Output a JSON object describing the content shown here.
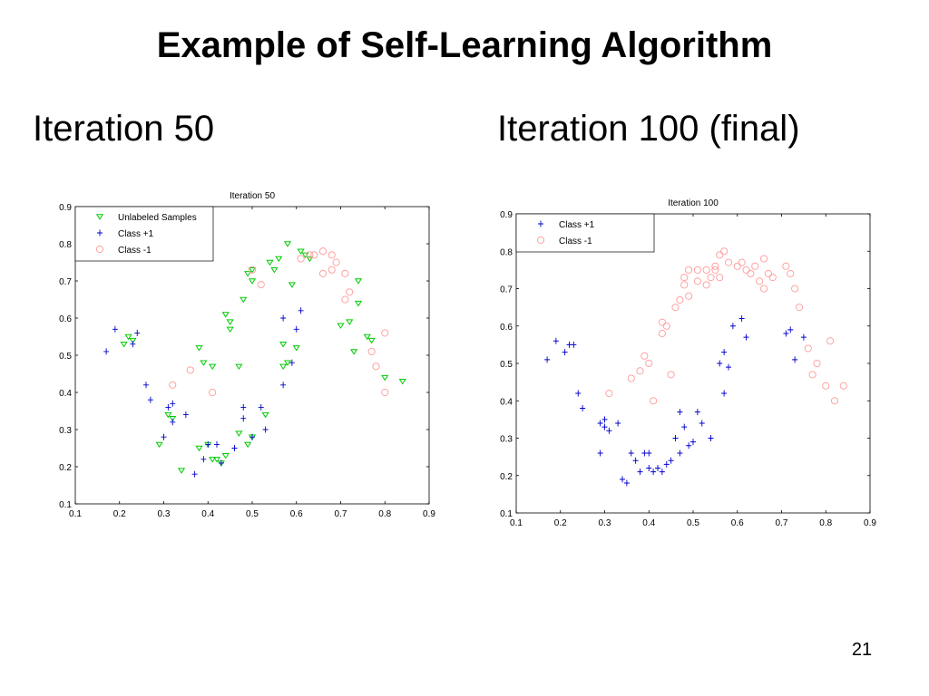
{
  "slide": {
    "title": "Example of Self-Learning Algorithm",
    "left_subtitle": "Iteration 50",
    "right_subtitle": "Iteration 100 (final)",
    "page_number": "21"
  },
  "colors": {
    "unlabeled": "#00cc00",
    "class_pos": "#0000cc",
    "class_neg": "#ff9999"
  },
  "chart_data": [
    {
      "type": "scatter",
      "title": "Iteration 50",
      "xlabel": "",
      "ylabel": "",
      "xlim": [
        0.1,
        0.9
      ],
      "ylim": [
        0.1,
        0.9
      ],
      "xticks": [
        "0.1",
        "0.2",
        "0.3",
        "0.4",
        "0.5",
        "0.6",
        "0.7",
        "0.8",
        "0.9"
      ],
      "yticks": [
        "0.1",
        "0.2",
        "0.3",
        "0.4",
        "0.5",
        "0.6",
        "0.7",
        "0.8",
        "0.9"
      ],
      "grid": false,
      "legend_position": "top-left",
      "series": [
        {
          "name": "Unlabeled Samples",
          "marker": "triangle-down",
          "color": "#00cc00",
          "points": [
            [
              0.21,
              0.53
            ],
            [
              0.22,
              0.55
            ],
            [
              0.23,
              0.54
            ],
            [
              0.29,
              0.26
            ],
            [
              0.31,
              0.34
            ],
            [
              0.32,
              0.33
            ],
            [
              0.34,
              0.19
            ],
            [
              0.38,
              0.25
            ],
            [
              0.38,
              0.52
            ],
            [
              0.39,
              0.48
            ],
            [
              0.41,
              0.47
            ],
            [
              0.4,
              0.26
            ],
            [
              0.41,
              0.22
            ],
            [
              0.42,
              0.22
            ],
            [
              0.43,
              0.21
            ],
            [
              0.44,
              0.23
            ],
            [
              0.44,
              0.61
            ],
            [
              0.45,
              0.59
            ],
            [
              0.45,
              0.57
            ],
            [
              0.47,
              0.47
            ],
            [
              0.47,
              0.29
            ],
            [
              0.48,
              0.65
            ],
            [
              0.49,
              0.72
            ],
            [
              0.49,
              0.26
            ],
            [
              0.5,
              0.7
            ],
            [
              0.5,
              0.28
            ],
            [
              0.5,
              0.73
            ],
            [
              0.53,
              0.34
            ],
            [
              0.54,
              0.75
            ],
            [
              0.55,
              0.73
            ],
            [
              0.56,
              0.76
            ],
            [
              0.57,
              0.47
            ],
            [
              0.57,
              0.53
            ],
            [
              0.58,
              0.48
            ],
            [
              0.58,
              0.8
            ],
            [
              0.59,
              0.69
            ],
            [
              0.6,
              0.52
            ],
            [
              0.61,
              0.78
            ],
            [
              0.62,
              0.77
            ],
            [
              0.63,
              0.76
            ],
            [
              0.7,
              0.58
            ],
            [
              0.72,
              0.59
            ],
            [
              0.73,
              0.51
            ],
            [
              0.74,
              0.7
            ],
            [
              0.76,
              0.55
            ],
            [
              0.77,
              0.54
            ],
            [
              0.8,
              0.44
            ],
            [
              0.84,
              0.43
            ],
            [
              0.74,
              0.64
            ]
          ]
        },
        {
          "name": "Class +1",
          "marker": "plus",
          "color": "#0000cc",
          "points": [
            [
              0.17,
              0.51
            ],
            [
              0.19,
              0.57
            ],
            [
              0.23,
              0.53
            ],
            [
              0.24,
              0.56
            ],
            [
              0.26,
              0.42
            ],
            [
              0.27,
              0.38
            ],
            [
              0.3,
              0.28
            ],
            [
              0.31,
              0.36
            ],
            [
              0.32,
              0.32
            ],
            [
              0.32,
              0.37
            ],
            [
              0.35,
              0.34
            ],
            [
              0.37,
              0.18
            ],
            [
              0.39,
              0.22
            ],
            [
              0.4,
              0.26
            ],
            [
              0.42,
              0.26
            ],
            [
              0.43,
              0.21
            ],
            [
              0.46,
              0.25
            ],
            [
              0.48,
              0.36
            ],
            [
              0.48,
              0.33
            ],
            [
              0.5,
              0.28
            ],
            [
              0.52,
              0.36
            ],
            [
              0.53,
              0.3
            ],
            [
              0.57,
              0.42
            ],
            [
              0.57,
              0.6
            ],
            [
              0.59,
              0.48
            ],
            [
              0.6,
              0.57
            ],
            [
              0.61,
              0.62
            ]
          ]
        },
        {
          "name": "Class -1",
          "marker": "circle",
          "color": "#ff9999",
          "points": [
            [
              0.32,
              0.42
            ],
            [
              0.36,
              0.46
            ],
            [
              0.41,
              0.4
            ],
            [
              0.5,
              0.73
            ],
            [
              0.52,
              0.69
            ],
            [
              0.61,
              0.76
            ],
            [
              0.63,
              0.77
            ],
            [
              0.64,
              0.77
            ],
            [
              0.66,
              0.78
            ],
            [
              0.66,
              0.72
            ],
            [
              0.68,
              0.77
            ],
            [
              0.68,
              0.73
            ],
            [
              0.69,
              0.75
            ],
            [
              0.71,
              0.72
            ],
            [
              0.71,
              0.65
            ],
            [
              0.72,
              0.67
            ],
            [
              0.77,
              0.51
            ],
            [
              0.78,
              0.47
            ],
            [
              0.8,
              0.4
            ],
            [
              0.8,
              0.56
            ]
          ]
        }
      ]
    },
    {
      "type": "scatter",
      "title": "Iteration 100",
      "xlabel": "",
      "ylabel": "",
      "xlim": [
        0.1,
        0.9
      ],
      "ylim": [
        0.1,
        0.9
      ],
      "xticks": [
        "0.1",
        "0.2",
        "0.3",
        "0.4",
        "0.5",
        "0.6",
        "0.7",
        "0.8",
        "0.9"
      ],
      "yticks": [
        "0.1",
        "0.2",
        "0.3",
        "0.4",
        "0.5",
        "0.6",
        "0.7",
        "0.8",
        "0.9"
      ],
      "grid": false,
      "legend_position": "top-left",
      "series": [
        {
          "name": "Class +1",
          "marker": "plus",
          "color": "#0000cc",
          "points": [
            [
              0.17,
              0.51
            ],
            [
              0.19,
              0.56
            ],
            [
              0.21,
              0.53
            ],
            [
              0.22,
              0.55
            ],
            [
              0.23,
              0.55
            ],
            [
              0.24,
              0.42
            ],
            [
              0.25,
              0.38
            ],
            [
              0.29,
              0.26
            ],
            [
              0.29,
              0.34
            ],
            [
              0.3,
              0.33
            ],
            [
              0.31,
              0.32
            ],
            [
              0.3,
              0.35
            ],
            [
              0.33,
              0.34
            ],
            [
              0.34,
              0.19
            ],
            [
              0.35,
              0.18
            ],
            [
              0.36,
              0.26
            ],
            [
              0.37,
              0.24
            ],
            [
              0.38,
              0.21
            ],
            [
              0.39,
              0.26
            ],
            [
              0.4,
              0.22
            ],
            [
              0.4,
              0.26
            ],
            [
              0.41,
              0.21
            ],
            [
              0.42,
              0.22
            ],
            [
              0.43,
              0.21
            ],
            [
              0.44,
              0.23
            ],
            [
              0.45,
              0.24
            ],
            [
              0.46,
              0.3
            ],
            [
              0.47,
              0.26
            ],
            [
              0.47,
              0.37
            ],
            [
              0.48,
              0.33
            ],
            [
              0.49,
              0.28
            ],
            [
              0.5,
              0.29
            ],
            [
              0.51,
              0.37
            ],
            [
              0.52,
              0.34
            ],
            [
              0.54,
              0.3
            ],
            [
              0.56,
              0.5
            ],
            [
              0.57,
              0.53
            ],
            [
              0.57,
              0.42
            ],
            [
              0.58,
              0.49
            ],
            [
              0.59,
              0.6
            ],
            [
              0.61,
              0.62
            ],
            [
              0.62,
              0.57
            ],
            [
              0.71,
              0.58
            ],
            [
              0.72,
              0.59
            ],
            [
              0.73,
              0.51
            ],
            [
              0.75,
              0.57
            ]
          ]
        },
        {
          "name": "Class -1",
          "marker": "circle",
          "color": "#ff9999",
          "points": [
            [
              0.31,
              0.42
            ],
            [
              0.36,
              0.46
            ],
            [
              0.38,
              0.48
            ],
            [
              0.39,
              0.52
            ],
            [
              0.4,
              0.5
            ],
            [
              0.41,
              0.4
            ],
            [
              0.43,
              0.61
            ],
            [
              0.43,
              0.58
            ],
            [
              0.44,
              0.6
            ],
            [
              0.45,
              0.47
            ],
            [
              0.46,
              0.65
            ],
            [
              0.47,
              0.67
            ],
            [
              0.48,
              0.71
            ],
            [
              0.48,
              0.73
            ],
            [
              0.49,
              0.68
            ],
            [
              0.49,
              0.75
            ],
            [
              0.51,
              0.72
            ],
            [
              0.51,
              0.75
            ],
            [
              0.53,
              0.71
            ],
            [
              0.53,
              0.75
            ],
            [
              0.54,
              0.73
            ],
            [
              0.55,
              0.76
            ],
            [
              0.55,
              0.75
            ],
            [
              0.56,
              0.73
            ],
            [
              0.56,
              0.79
            ],
            [
              0.57,
              0.8
            ],
            [
              0.58,
              0.77
            ],
            [
              0.6,
              0.76
            ],
            [
              0.61,
              0.77
            ],
            [
              0.62,
              0.75
            ],
            [
              0.63,
              0.74
            ],
            [
              0.64,
              0.76
            ],
            [
              0.65,
              0.72
            ],
            [
              0.66,
              0.78
            ],
            [
              0.66,
              0.7
            ],
            [
              0.67,
              0.74
            ],
            [
              0.68,
              0.73
            ],
            [
              0.71,
              0.76
            ],
            [
              0.72,
              0.74
            ],
            [
              0.73,
              0.7
            ],
            [
              0.74,
              0.65
            ],
            [
              0.76,
              0.54
            ],
            [
              0.77,
              0.47
            ],
            [
              0.78,
              0.5
            ],
            [
              0.8,
              0.44
            ],
            [
              0.81,
              0.56
            ],
            [
              0.82,
              0.4
            ],
            [
              0.84,
              0.44
            ]
          ]
        }
      ]
    }
  ]
}
